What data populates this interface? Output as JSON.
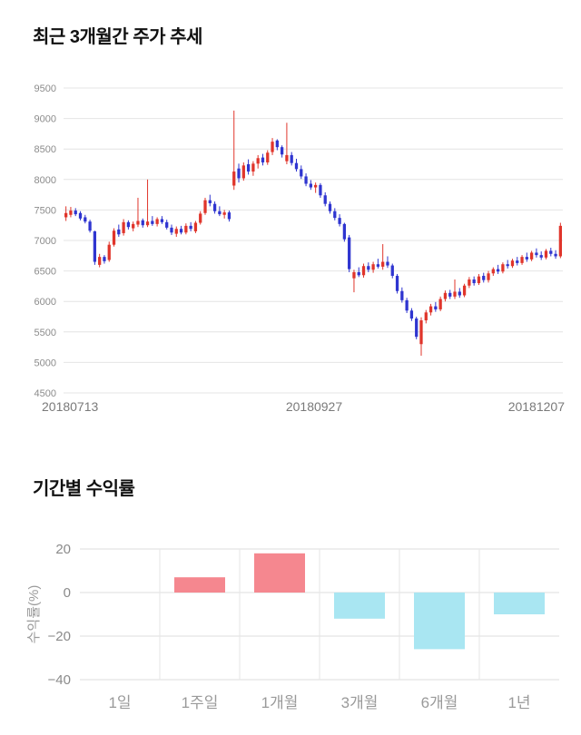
{
  "chart_data": [
    {
      "type": "candlestick",
      "title": "최근 3개월간 주가 추세",
      "ylim": [
        4500,
        9500
      ],
      "yticks": [
        4500,
        5000,
        5500,
        6000,
        6500,
        7000,
        7500,
        8000,
        8500,
        9000,
        9500
      ],
      "xtick_labels": [
        "20180713",
        "20180927",
        "20181207"
      ],
      "up_color": "#e0352b",
      "down_color": "#2f35d0",
      "grid_color": "#e4e4e4",
      "grid": true,
      "candles": [
        [
          7380,
          7560,
          7320,
          7450
        ],
        [
          7420,
          7550,
          7380,
          7490
        ],
        [
          7490,
          7530,
          7400,
          7430
        ],
        [
          7450,
          7480,
          7330,
          7360
        ],
        [
          7380,
          7420,
          7280,
          7310
        ],
        [
          7310,
          7340,
          7130,
          7160
        ],
        [
          7150,
          7160,
          6600,
          6650
        ],
        [
          6600,
          6780,
          6560,
          6730
        ],
        [
          6730,
          6760,
          6620,
          6660
        ],
        [
          6680,
          6980,
          6650,
          6930
        ],
        [
          6930,
          7200,
          6900,
          7160
        ],
        [
          7180,
          7260,
          7060,
          7100
        ],
        [
          7120,
          7350,
          7080,
          7300
        ],
        [
          7300,
          7330,
          7180,
          7220
        ],
        [
          7200,
          7310,
          7150,
          7270
        ],
        [
          7260,
          7700,
          7220,
          7320
        ],
        [
          7330,
          7360,
          7210,
          7250
        ],
        [
          7250,
          8000,
          7220,
          7310
        ],
        [
          7320,
          7400,
          7240,
          7270
        ],
        [
          7270,
          7380,
          7230,
          7350
        ],
        [
          7350,
          7400,
          7270,
          7300
        ],
        [
          7300,
          7340,
          7180,
          7210
        ],
        [
          7210,
          7260,
          7090,
          7130
        ],
        [
          7110,
          7230,
          7060,
          7190
        ],
        [
          7190,
          7240,
          7100,
          7130
        ],
        [
          7130,
          7280,
          7100,
          7240
        ],
        [
          7240,
          7300,
          7150,
          7190
        ],
        [
          7150,
          7320,
          7120,
          7290
        ],
        [
          7290,
          7480,
          7260,
          7440
        ],
        [
          7450,
          7700,
          7420,
          7660
        ],
        [
          7660,
          7750,
          7560,
          7610
        ],
        [
          7600,
          7640,
          7440,
          7480
        ],
        [
          7480,
          7560,
          7400,
          7430
        ],
        [
          7420,
          7500,
          7360,
          7460
        ],
        [
          7460,
          7490,
          7310,
          7350
        ],
        [
          7900,
          9130,
          7830,
          8130
        ],
        [
          8180,
          8260,
          7950,
          8020
        ],
        [
          8020,
          8280,
          7980,
          8230
        ],
        [
          8250,
          8330,
          8080,
          8130
        ],
        [
          8130,
          8300,
          8060,
          8260
        ],
        [
          8260,
          8400,
          8180,
          8350
        ],
        [
          8360,
          8420,
          8230,
          8280
        ],
        [
          8280,
          8480,
          8240,
          8440
        ],
        [
          8450,
          8680,
          8400,
          8620
        ],
        [
          8640,
          8660,
          8480,
          8530
        ],
        [
          8530,
          8560,
          8360,
          8410
        ],
        [
          8300,
          8930,
          8250,
          8400
        ],
        [
          8400,
          8450,
          8230,
          8270
        ],
        [
          8270,
          8340,
          8130,
          8170
        ],
        [
          8170,
          8230,
          8010,
          8050
        ],
        [
          8050,
          8100,
          7890,
          7930
        ],
        [
          7930,
          7990,
          7830,
          7870
        ],
        [
          7870,
          7950,
          7780,
          7910
        ],
        [
          7910,
          7940,
          7700,
          7740
        ],
        [
          7740,
          7790,
          7560,
          7600
        ],
        [
          7600,
          7640,
          7440,
          7480
        ],
        [
          7480,
          7530,
          7330,
          7370
        ],
        [
          7370,
          7430,
          7230,
          7270
        ],
        [
          7270,
          7290,
          6980,
          7020
        ],
        [
          7050,
          7090,
          6480,
          6530
        ],
        [
          6380,
          6520,
          6150,
          6480
        ],
        [
          6480,
          6560,
          6400,
          6430
        ],
        [
          6430,
          6620,
          6390,
          6580
        ],
        [
          6580,
          6640,
          6480,
          6520
        ],
        [
          6520,
          6650,
          6470,
          6610
        ],
        [
          6610,
          6700,
          6540,
          6570
        ],
        [
          6570,
          6940,
          6520,
          6650
        ],
        [
          6650,
          6740,
          6550,
          6590
        ],
        [
          6590,
          6620,
          6380,
          6420
        ],
        [
          6420,
          6450,
          6130,
          6170
        ],
        [
          6170,
          6230,
          5980,
          6020
        ],
        [
          6020,
          6060,
          5810,
          5850
        ],
        [
          5850,
          5890,
          5680,
          5720
        ],
        [
          5720,
          5750,
          5380,
          5420
        ],
        [
          5300,
          5740,
          5110,
          5690
        ],
        [
          5690,
          5860,
          5640,
          5820
        ],
        [
          5820,
          5960,
          5770,
          5920
        ],
        [
          5920,
          5990,
          5830,
          5870
        ],
        [
          5870,
          6080,
          5840,
          6040
        ],
        [
          6040,
          6180,
          6000,
          6140
        ],
        [
          6140,
          6190,
          6040,
          6080
        ],
        [
          6080,
          6360,
          6040,
          6160
        ],
        [
          6160,
          6220,
          6060,
          6100
        ],
        [
          6100,
          6290,
          6070,
          6260
        ],
        [
          6260,
          6400,
          6220,
          6360
        ],
        [
          6360,
          6410,
          6260,
          6300
        ],
        [
          6300,
          6450,
          6270,
          6410
        ],
        [
          6420,
          6470,
          6310,
          6350
        ],
        [
          6350,
          6500,
          6310,
          6460
        ],
        [
          6460,
          6560,
          6420,
          6530
        ],
        [
          6530,
          6600,
          6450,
          6490
        ],
        [
          6490,
          6640,
          6460,
          6610
        ],
        [
          6610,
          6680,
          6540,
          6580
        ],
        [
          6580,
          6700,
          6550,
          6670
        ],
        [
          6670,
          6730,
          6590,
          6630
        ],
        [
          6630,
          6760,
          6600,
          6730
        ],
        [
          6730,
          6800,
          6650,
          6690
        ],
        [
          6690,
          6830,
          6660,
          6800
        ],
        [
          6800,
          6870,
          6720,
          6760
        ],
        [
          6760,
          6820,
          6680,
          6720
        ],
        [
          6720,
          6860,
          6690,
          6830
        ],
        [
          6830,
          6880,
          6740,
          6780
        ],
        [
          6780,
          6840,
          6700,
          6740
        ],
        [
          6740,
          7290,
          6710,
          7240
        ]
      ]
    },
    {
      "type": "bar",
      "title": "기간별 수익률",
      "categories": [
        "1일",
        "1주일",
        "1개월",
        "3개월",
        "6개월",
        "1년"
      ],
      "values": [
        0,
        7,
        18,
        -12,
        -26,
        -10
      ],
      "ylabel": "수익률(%)",
      "ylim": [
        -40,
        20
      ],
      "yticks": [
        20,
        0,
        -20,
        -40
      ],
      "positive_color": "#f5878f",
      "negative_color": "#a9e6f2",
      "grid_color": "#dedede",
      "grid": true,
      "legend": "none"
    }
  ]
}
